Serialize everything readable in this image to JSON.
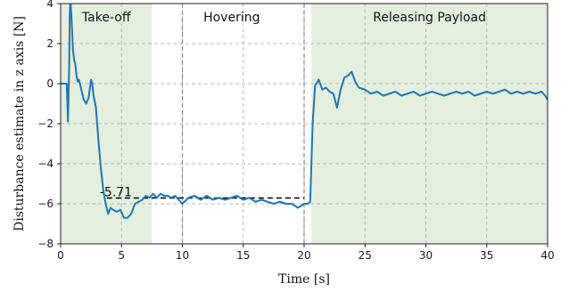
{
  "chart_data": {
    "type": "line",
    "title": "",
    "xlabel": "Time [s]",
    "ylabel": "Disturbance estimate in z axis [N]",
    "xlim": [
      0,
      40
    ],
    "ylim": [
      -8,
      4
    ],
    "x_ticks": [
      0,
      5,
      10,
      15,
      20,
      25,
      30,
      35,
      40
    ],
    "y_ticks": [
      -8,
      -6,
      -4,
      -2,
      0,
      2,
      4
    ],
    "grid": true,
    "line_color": "#1f77b4",
    "phases": [
      {
        "label": "Take-off",
        "x_start": 0,
        "x_end": 7.5,
        "shaded": true
      },
      {
        "label": "Hovering",
        "x_start": 7.5,
        "x_end": 20.6,
        "shaded": false
      },
      {
        "label": "Releasing Payload",
        "x_start": 20.6,
        "x_end": 40,
        "shaded": true
      }
    ],
    "phase_separators": [
      10,
      20
    ],
    "shade_color": "#e4efdf",
    "reference_line": {
      "y": -5.71,
      "x_start": 3.8,
      "x_end": 20.0,
      "label": "-5.71"
    },
    "series": [
      {
        "x": [
          0,
          0.5,
          0.6,
          0.7,
          0.75,
          0.8,
          0.9,
          1.0,
          1.1,
          1.2,
          1.3,
          1.4,
          1.5,
          1.7,
          1.9,
          2.1,
          2.3,
          2.5,
          2.6,
          2.7,
          2.9,
          3.1,
          3.3,
          3.5,
          3.7,
          3.9,
          4.1,
          4.3,
          4.6,
          4.9,
          5.2,
          5.5,
          5.8,
          6.1,
          6.4,
          6.7,
          7.0,
          7.3,
          7.6,
          7.9,
          8.2,
          8.5,
          8.8,
          9.1,
          9.4,
          9.7,
          10.0,
          10.5,
          11.0,
          11.5,
          12.0,
          12.5,
          13.0,
          13.5,
          14.0,
          14.5,
          15.0,
          15.5,
          16.0,
          16.5,
          17.0,
          17.5,
          18.0,
          18.5,
          19.0,
          19.5,
          20.0,
          20.3,
          20.5,
          20.7,
          20.9,
          21.2,
          21.5,
          21.8,
          22.1,
          22.4,
          22.7,
          23.0,
          23.3,
          23.6,
          23.9,
          24.2,
          24.5,
          25.0,
          25.5,
          26.0,
          26.5,
          27.0,
          27.5,
          28.0,
          28.5,
          29.0,
          29.5,
          30.0,
          30.5,
          31.0,
          31.5,
          32.0,
          32.5,
          33.0,
          33.5,
          34.0,
          34.5,
          35.0,
          35.5,
          36.0,
          36.5,
          37.0,
          37.5,
          38.0,
          38.5,
          39.0,
          39.5,
          39.8,
          40.0
        ],
        "y": [
          0,
          0,
          -1.9,
          0.8,
          3.5,
          4.2,
          3.2,
          1.8,
          1.2,
          1.0,
          0.4,
          0.1,
          0.2,
          -0.3,
          -0.8,
          -1.0,
          -0.7,
          0.2,
          0.0,
          -0.6,
          -1.2,
          -2.8,
          -4.2,
          -5.3,
          -6.0,
          -6.5,
          -6.2,
          -6.3,
          -6.4,
          -6.3,
          -6.7,
          -6.7,
          -6.5,
          -6.0,
          -5.9,
          -5.8,
          -5.6,
          -5.7,
          -5.5,
          -5.7,
          -5.5,
          -5.6,
          -5.6,
          -5.7,
          -5.6,
          -5.8,
          -6.0,
          -5.7,
          -5.6,
          -5.8,
          -5.6,
          -5.8,
          -5.7,
          -5.8,
          -5.7,
          -5.6,
          -5.8,
          -5.7,
          -5.9,
          -5.8,
          -5.9,
          -6.0,
          -5.9,
          -6.0,
          -6.0,
          -6.2,
          -6.0,
          -6.0,
          -5.9,
          -2.0,
          -0.1,
          0.2,
          -0.3,
          -0.2,
          -0.4,
          -0.5,
          -1.2,
          -0.3,
          0.3,
          0.4,
          0.6,
          0.1,
          -0.2,
          -0.3,
          -0.5,
          -0.4,
          -0.6,
          -0.5,
          -0.4,
          -0.6,
          -0.5,
          -0.4,
          -0.6,
          -0.5,
          -0.4,
          -0.5,
          -0.6,
          -0.5,
          -0.4,
          -0.5,
          -0.4,
          -0.6,
          -0.5,
          -0.4,
          -0.5,
          -0.4,
          -0.3,
          -0.5,
          -0.4,
          -0.5,
          -0.4,
          -0.5,
          -0.4,
          -0.6,
          -0.8
        ]
      }
    ]
  }
}
